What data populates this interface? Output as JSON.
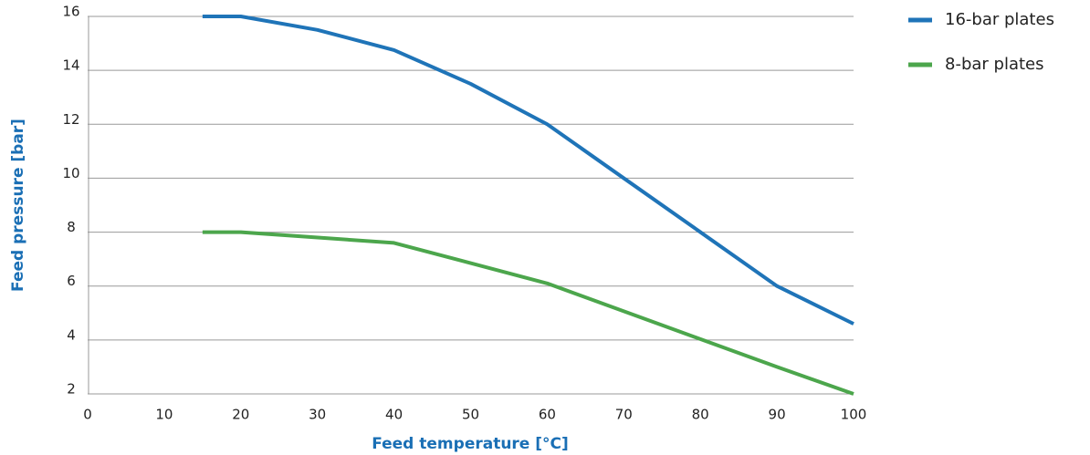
{
  "chart_data": {
    "type": "line",
    "x_label": "Feed temperature [°C]",
    "y_label": "Feed pressure [bar]",
    "xlim": [
      0,
      100
    ],
    "xticks": [
      0,
      10,
      20,
      30,
      40,
      50,
      60,
      70,
      80,
      90,
      100
    ],
    "ylim": [
      2,
      16
    ],
    "yticks": [
      2,
      4,
      6,
      8,
      10,
      12,
      14,
      16
    ],
    "grid": true,
    "series": [
      {
        "name": "16-bar plates",
        "color": "#1f74b8",
        "x": [
          15,
          20,
          30,
          40,
          50,
          60,
          70,
          80,
          90,
          100
        ],
        "values": [
          16,
          16,
          15.5,
          14.75,
          13.5,
          12,
          10,
          8,
          6,
          4.6
        ]
      },
      {
        "name": "8-bar plates",
        "color": "#4ca64c",
        "x": [
          15,
          20,
          40,
          60,
          90,
          100
        ],
        "values": [
          8,
          8,
          7.6,
          6.1,
          3,
          2
        ]
      }
    ]
  }
}
